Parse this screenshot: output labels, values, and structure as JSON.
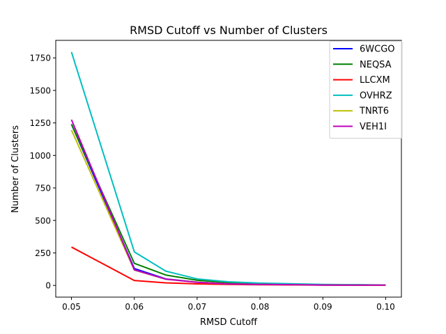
{
  "chart_data": {
    "type": "line",
    "title": "RMSD Cutoff vs Number of Clusters",
    "xlabel": "RMSD Cutoff",
    "ylabel": "Number of Clusters",
    "xlim": [
      0.0475,
      0.1025
    ],
    "ylim": [
      -90,
      1885
    ],
    "x_ticks": [
      "0.05",
      "0.06",
      "0.07",
      "0.08",
      "0.09",
      "0.10"
    ],
    "y_ticks": [
      "0",
      "250",
      "500",
      "750",
      "1000",
      "1250",
      "1500",
      "1750"
    ],
    "grid": false,
    "legend_placement": "top-right",
    "x": [
      0.05,
      0.06,
      0.065,
      0.07,
      0.075,
      0.08,
      0.09,
      0.1
    ],
    "series": [
      {
        "name": "6WCGO",
        "color": "#0000ff",
        "values": [
          1240,
          130,
          50,
          25,
          12,
          8,
          3,
          2
        ]
      },
      {
        "name": "NEQSA",
        "color": "#008000",
        "values": [
          1240,
          170,
          80,
          40,
          22,
          14,
          6,
          3
        ]
      },
      {
        "name": "LLCXM",
        "color": "#ff0000",
        "values": [
          295,
          38,
          20,
          12,
          8,
          5,
          2,
          1
        ]
      },
      {
        "name": "OVHRZ",
        "color": "#00bfbf",
        "values": [
          1795,
          258,
          110,
          50,
          28,
          18,
          8,
          4
        ]
      },
      {
        "name": "TNRT6",
        "color": "#bfbf00",
        "values": [
          1195,
          118,
          48,
          25,
          12,
          8,
          3,
          2
        ]
      },
      {
        "name": "VEH1I",
        "color": "#bf00bf",
        "values": [
          1275,
          120,
          48,
          24,
          12,
          8,
          3,
          2
        ]
      }
    ]
  }
}
